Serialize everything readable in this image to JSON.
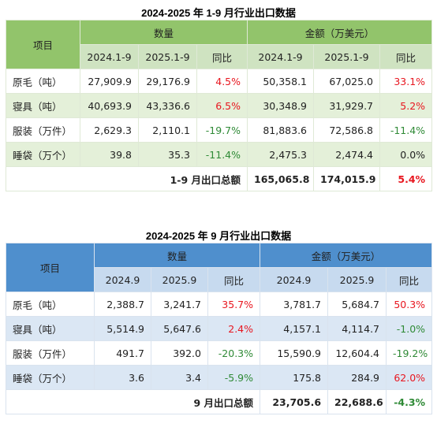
{
  "table1": {
    "title": "2024-2025 年 1-9 月行业出口数据",
    "item_header": "项目",
    "qty_header": "数量",
    "amt_header": "金额（万美元）",
    "sub": [
      "2024.1-9",
      "2025.1-9",
      "同比",
      "2024.1-9",
      "2025.1-9",
      "同比"
    ],
    "rows": [
      {
        "name": "原毛（吨）",
        "q1": "27,909.9",
        "q2": "29,176.9",
        "qy": "4.5%",
        "a1": "50,358.1",
        "a2": "67,025.0",
        "ay": "33.1%"
      },
      {
        "name": "寝具（吨）",
        "q1": "40,693.9",
        "q2": "43,336.6",
        "qy": "6.5%",
        "a1": "30,348.9",
        "a2": "31,929.7",
        "ay": "5.2%"
      },
      {
        "name": "服装（万件）",
        "q1": "2,629.3",
        "q2": "2,110.1",
        "qy": "-19.7%",
        "a1": "81,883.6",
        "a2": "72,586.8",
        "ay": "-11.4%"
      },
      {
        "name": "睡袋（万个）",
        "q1": "39.8",
        "q2": "35.3",
        "qy": "-11.4%",
        "a1": "2,475.3",
        "a2": "2,474.4",
        "ay": "0.0%"
      }
    ],
    "total": {
      "label": "1-9 月出口总额",
      "a1": "165,065.8",
      "a2": "174,015.9",
      "ay": "5.4%"
    }
  },
  "table2": {
    "title": "2024-2025 年 9 月行业出口数据",
    "item_header": "项目",
    "qty_header": "数量",
    "amt_header": "金额（万美元）",
    "sub": [
      "2024.9",
      "2025.9",
      "同比",
      "2024.9",
      "2025.9",
      "同比"
    ],
    "rows": [
      {
        "name": "原毛（吨）",
        "q1": "2,388.7",
        "q2": "3,241.7",
        "qy": "35.7%",
        "a1": "3,781.7",
        "a2": "5,684.7",
        "ay": "50.3%"
      },
      {
        "name": "寝具（吨）",
        "q1": "5,514.9",
        "q2": "5,647.6",
        "qy": "2.4%",
        "a1": "4,157.1",
        "a2": "4,114.7",
        "ay": "-1.0%"
      },
      {
        "name": "服装（万件）",
        "q1": "491.7",
        "q2": "392.0",
        "qy": "-20.3%",
        "a1": "15,590.9",
        "a2": "12,604.4",
        "ay": "-19.2%"
      },
      {
        "name": "睡袋（万个）",
        "q1": "3.6",
        "q2": "3.4",
        "qy": "-5.9%",
        "a1": "175.8",
        "a2": "284.9",
        "ay": "62.0%"
      }
    ],
    "total": {
      "label": "9 月出口总额",
      "a1": "23,705.6",
      "a2": "22,688.6",
      "ay": "-4.3%"
    }
  },
  "colors": {
    "positive": "#e8161f",
    "negative": "#2f8a36",
    "green_header": "#92c46b",
    "blue_header": "#4f8fcd"
  }
}
